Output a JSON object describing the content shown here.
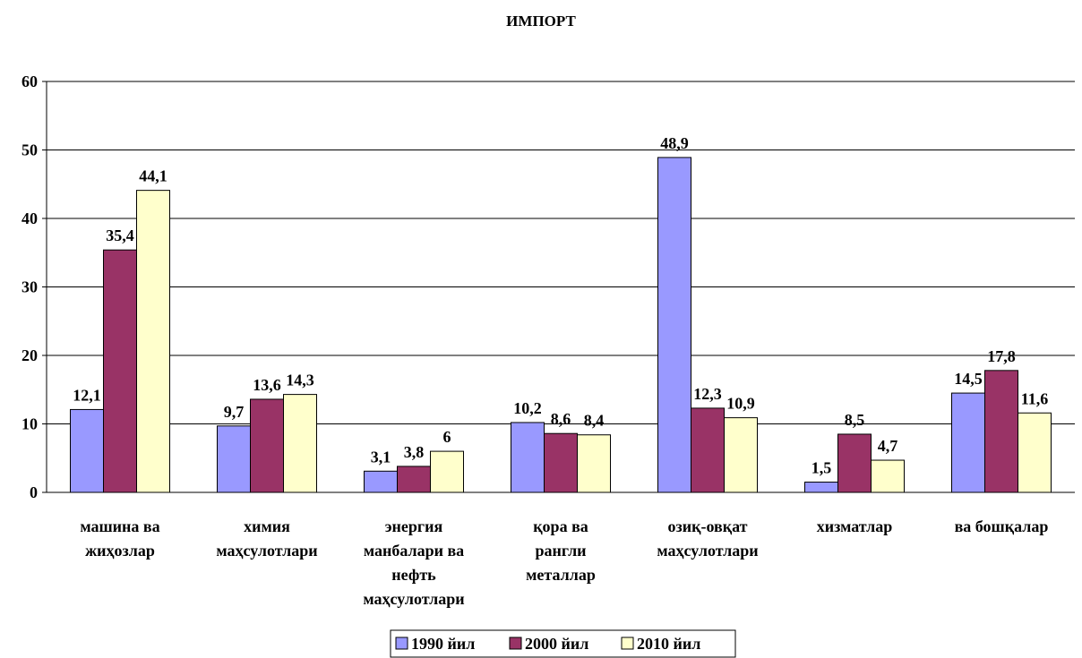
{
  "chart_data": {
    "type": "bar",
    "title": "ИМПОРТ",
    "xlabel": "",
    "ylabel": "",
    "ylim": [
      0,
      60
    ],
    "yticks": [
      "0",
      "10",
      "20",
      "30",
      "40",
      "50",
      "60"
    ],
    "grid": true,
    "legend_position": "bottom",
    "categories": [
      [
        "машина ва",
        "жиҳозлар"
      ],
      [
        "химия",
        "маҳсулотлари"
      ],
      [
        "энергия",
        "манбалари ва",
        "нефть",
        "маҳсулотлари"
      ],
      [
        "қора ва",
        "рангли",
        "металлар"
      ],
      [
        "озиқ-овқат",
        "маҳсулотлари"
      ],
      [
        "хизматлар"
      ],
      [
        "ва бошқалар"
      ]
    ],
    "series": [
      {
        "name": "1990 йил",
        "color": "#9999ff",
        "values": [
          12.1,
          9.7,
          3.1,
          10.2,
          48.9,
          1.5,
          14.5
        ],
        "labels": [
          "12,1",
          "9,7",
          "3,1",
          "10,2",
          "48,9",
          "1,5",
          "14,5"
        ]
      },
      {
        "name": "2000 йил",
        "color": "#993366",
        "values": [
          35.4,
          13.6,
          3.8,
          8.6,
          12.3,
          8.5,
          17.8
        ],
        "labels": [
          "35,4",
          "13,6",
          "3,8",
          "8,6",
          "12,3",
          "8,5",
          "17,8"
        ]
      },
      {
        "name": "2010 йил",
        "color": "#ffffcc",
        "values": [
          44.1,
          14.3,
          6,
          8.4,
          10.9,
          4.7,
          11.6
        ],
        "labels": [
          "44,1",
          "14,3",
          "6",
          "8,4",
          "10,9",
          "4,7",
          "11,6"
        ]
      }
    ]
  }
}
